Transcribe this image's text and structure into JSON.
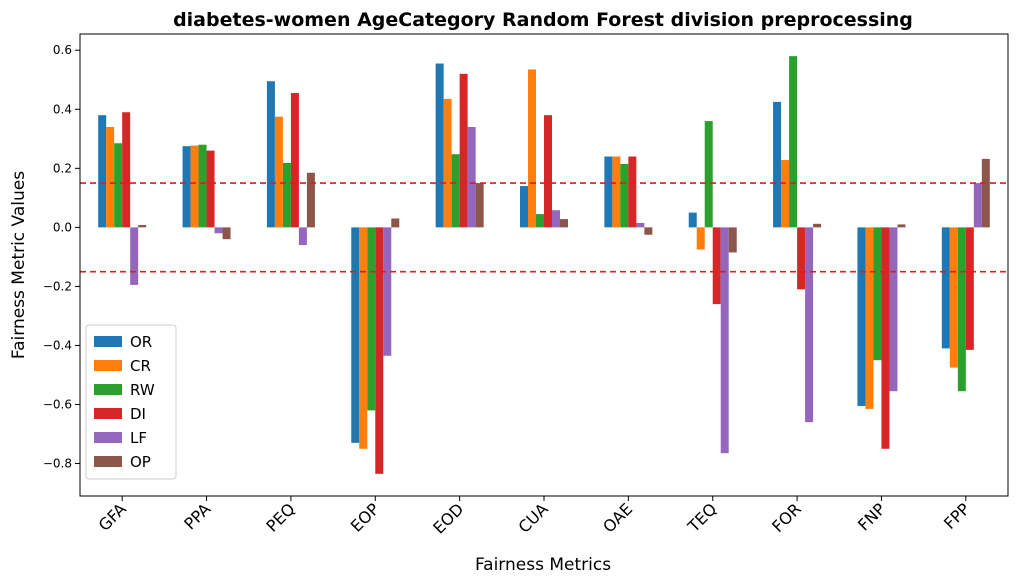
{
  "chart_data": {
    "type": "bar",
    "title": "diabetes-women AgeCategory Random Forest division preprocessing",
    "xlabel": "Fairness Metrics",
    "ylabel": "Fairness Metric Values",
    "ylim": [
      -0.91,
      0.655
    ],
    "yticks": [
      -0.8,
      -0.6,
      -0.4,
      -0.2,
      0.0,
      0.2,
      0.4,
      0.6
    ],
    "ytick_labels": [
      "−0.8",
      "−0.6",
      "−0.4",
      "−0.2",
      "0.0",
      "0.2",
      "0.4",
      "0.6"
    ],
    "categories": [
      "GFA",
      "PPA",
      "PEQ",
      "EOP",
      "EOD",
      "CUA",
      "OAE",
      "TEQ",
      "FOR",
      "FNP",
      "FPP"
    ],
    "threshold_lines": [
      0.15,
      -0.15
    ],
    "threshold_color": "#e41a1c",
    "legend_position": "lower-left",
    "grid": false,
    "series": [
      {
        "name": "OR",
        "color": "#1f77b4",
        "values": [
          0.38,
          0.275,
          0.495,
          -0.73,
          0.555,
          0.14,
          0.24,
          0.05,
          0.425,
          -0.605,
          -0.41
        ]
      },
      {
        "name": "CR",
        "color": "#ff7f0e",
        "values": [
          0.34,
          0.277,
          0.375,
          -0.75,
          0.435,
          0.535,
          0.24,
          -0.075,
          0.228,
          -0.615,
          -0.475
        ]
      },
      {
        "name": "RW",
        "color": "#2ca02c",
        "values": [
          0.285,
          0.28,
          0.218,
          -0.62,
          0.248,
          0.045,
          0.215,
          0.36,
          0.58,
          -0.45,
          -0.555
        ]
      },
      {
        "name": "DI",
        "color": "#d62728",
        "values": [
          0.39,
          0.26,
          0.455,
          -0.835,
          0.52,
          0.38,
          0.24,
          -0.26,
          -0.21,
          -0.75,
          -0.415
        ]
      },
      {
        "name": "LF",
        "color": "#9467bd",
        "values": [
          -0.195,
          -0.02,
          -0.06,
          -0.435,
          0.34,
          0.058,
          0.015,
          -0.765,
          -0.66,
          -0.555,
          0.15
        ]
      },
      {
        "name": "OP",
        "color": "#8c564b",
        "values": [
          0.008,
          -0.04,
          0.185,
          0.03,
          0.15,
          0.028,
          -0.025,
          -0.085,
          0.012,
          0.01,
          0.232
        ]
      }
    ]
  }
}
